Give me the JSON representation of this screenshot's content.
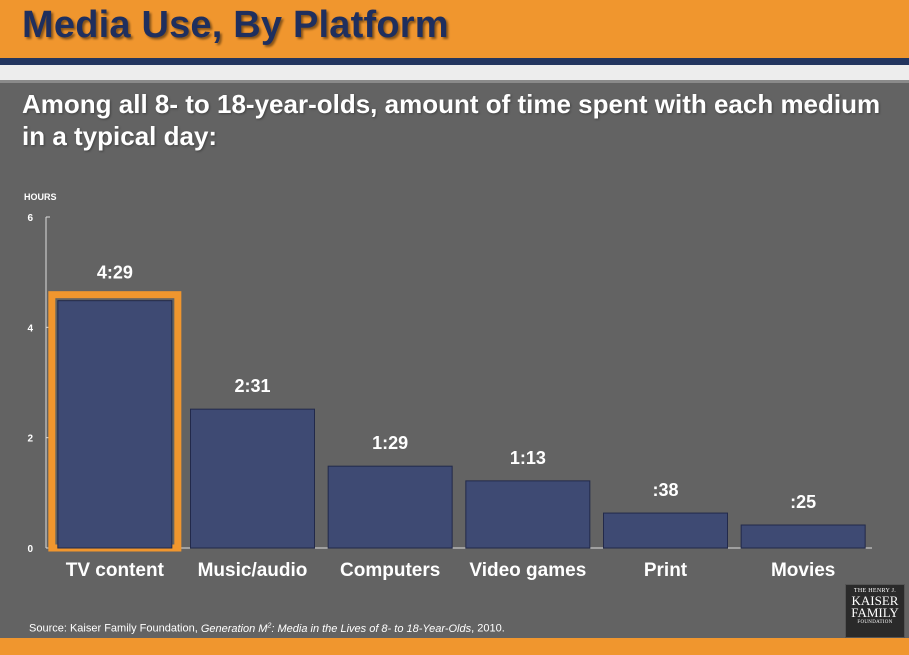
{
  "slide": {
    "title": "Media Use, By Platform",
    "subtitle": "Among all 8- to 18-year-olds, amount of time spent with each medium in a typical day:",
    "source_prefix": "Source: Kaiser Family Foundation, ",
    "source_title": "Generation M",
    "source_superscript": "2",
    "source_title_rest": ": Media in the Lives of 8- to 18-Year-Olds",
    "source_suffix": ", 2010.",
    "logo": {
      "line1": "THE HENRY J.",
      "line2": "KAISER",
      "line3": "FAMILY",
      "line4": "FOUNDATION"
    }
  },
  "colors": {
    "banner": "#F0962E",
    "title_text": "#1F2F5E",
    "bar_fill": "#3E4A73",
    "highlight_border": "#F0962E",
    "background": "#636363"
  },
  "chart_data": {
    "type": "bar",
    "title": "Media Use, By Platform",
    "ylabel": "HOURS",
    "xlabel": "",
    "ylim": [
      0,
      6
    ],
    "yticks": [
      0,
      2,
      4,
      6
    ],
    "categories": [
      "TV content",
      "Music/audio",
      "Computers",
      "Video games",
      "Print",
      "Movies"
    ],
    "values": [
      4.4833,
      2.5167,
      1.4833,
      1.2167,
      0.6333,
      0.4167
    ],
    "data_labels": [
      "4:29",
      "2:31",
      "1:29",
      "1:13",
      ":38",
      ":25"
    ],
    "highlighted": "TV content"
  }
}
